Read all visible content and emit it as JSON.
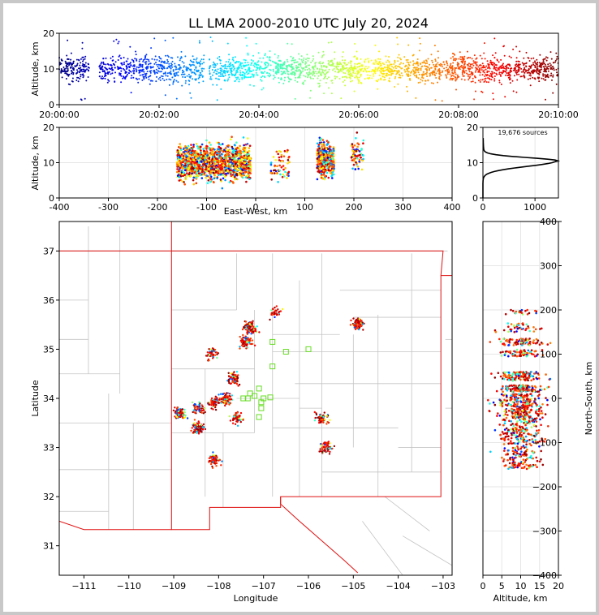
{
  "chart_data": {
    "title": "LL LMA 2000-2010 UTC July 20, 2024",
    "source_count_label": "19,676 sources",
    "panels": {
      "time_altitude": {
        "type": "scatter",
        "xlabel": "",
        "ylabel": "Altitude, km",
        "x_ticks": [
          "20:00:00",
          "20:02:00",
          "20:04:00",
          "20:06:00",
          "20:08:00",
          "20:10:00"
        ],
        "y_ticks": [
          0,
          10,
          20
        ],
        "xlim_minutes": [
          0,
          10
        ],
        "ylim": [
          0,
          20
        ],
        "altitude_center_km": 10,
        "colormap": "jet (time)"
      },
      "east_west_altitude": {
        "type": "scatter",
        "xlabel": "East-West, km",
        "ylabel": "Altitude, km",
        "x_ticks": [
          -400,
          -300,
          -200,
          -100,
          0,
          100,
          200,
          300,
          400
        ],
        "y_ticks": [
          0,
          10,
          20
        ],
        "xlim": [
          -400,
          400
        ],
        "ylim": [
          0,
          20
        ],
        "clusters_km": [
          {
            "x_range": [
              -160,
              -10
            ],
            "center_alt": 10
          },
          {
            "x_range": [
              30,
              70
            ],
            "center_alt": 10
          },
          {
            "x_range": [
              125,
              160
            ],
            "center_alt": 11
          },
          {
            "x_range": [
              195,
              220
            ],
            "center_alt": 12
          }
        ]
      },
      "altitude_histogram": {
        "type": "line",
        "x_ticks": [
          0,
          1000
        ],
        "y_ticks": [
          0,
          10,
          20
        ],
        "xlim": [
          0,
          1450
        ],
        "ylim": [
          0,
          20
        ],
        "peak": {
          "altitude_km": 10.5,
          "count": 1400
        }
      },
      "plan_view": {
        "type": "scatter",
        "xlabel": "Longitude",
        "ylabel": "Latitude",
        "x_ticks": [
          -111,
          -110,
          -109,
          -108,
          -107,
          -106,
          -105,
          -104,
          -103
        ],
        "y_ticks": [
          31,
          32,
          33,
          34,
          35,
          36,
          37
        ],
        "xlim": [
          -111.55,
          -102.8
        ],
        "ylim": [
          30.4,
          37.6
        ],
        "stations": [
          [
            -106.8,
            35.15
          ],
          [
            -106.5,
            34.95
          ],
          [
            -106.0,
            35.0
          ],
          [
            -106.8,
            34.65
          ],
          [
            -107.1,
            34.2
          ],
          [
            -107.3,
            34.1
          ],
          [
            -107.2,
            34.05
          ],
          [
            -107.0,
            34.0
          ],
          [
            -107.35,
            34.0
          ],
          [
            -107.05,
            33.92
          ],
          [
            -107.05,
            33.8
          ],
          [
            -107.1,
            33.62
          ],
          [
            -106.85,
            34.02
          ],
          [
            -107.45,
            34.0
          ]
        ],
        "clusters": [
          {
            "lon": -108.15,
            "lat": 34.9
          },
          {
            "lon": -107.65,
            "lat": 34.4
          },
          {
            "lon": -108.45,
            "lat": 33.8
          },
          {
            "lon": -108.1,
            "lat": 33.9
          },
          {
            "lon": -108.45,
            "lat": 33.4
          },
          {
            "lon": -108.1,
            "lat": 32.75
          },
          {
            "lon": -107.85,
            "lat": 34.0
          },
          {
            "lon": -107.6,
            "lat": 33.6
          },
          {
            "lon": -107.4,
            "lat": 35.15
          },
          {
            "lon": -105.7,
            "lat": 33.6
          },
          {
            "lon": -105.6,
            "lat": 33.0
          },
          {
            "lon": -104.9,
            "lat": 35.5
          },
          {
            "lon": -108.85,
            "lat": 33.7
          },
          {
            "lon": -107.3,
            "lat": 35.45
          },
          {
            "lon": -106.75,
            "lat": 35.75
          }
        ]
      },
      "altitude_north_south": {
        "type": "scatter",
        "xlabel": "Altitude, km",
        "ylabel": "North-South, km",
        "x_ticks": [
          0,
          5,
          10,
          15,
          20
        ],
        "y_ticks": [
          -400,
          -300,
          -200,
          -100,
          0,
          100,
          200,
          300,
          400
        ],
        "xlim": [
          0,
          20
        ],
        "ylim": [
          -400,
          400
        ],
        "ns_range_km": [
          -160,
          200
        ]
      }
    }
  }
}
